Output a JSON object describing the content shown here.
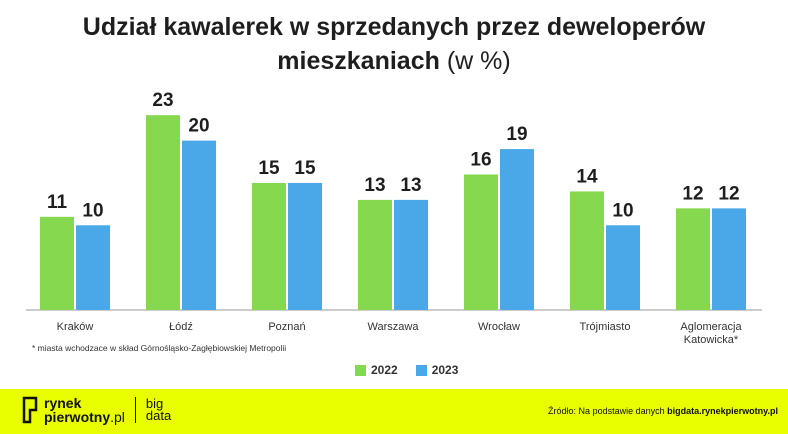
{
  "title": {
    "line1": "Udział kawalerek w sprzedanych przez deweloperów",
    "line2_main": "mieszkaniach",
    "line2_unit": "(w %)"
  },
  "chart_data": {
    "type": "bar",
    "categories": [
      "Kraków",
      "Łódź",
      "Poznań",
      "Warszawa",
      "Wrocław",
      "Trójmiasto",
      "Aglomeracja Katowicka*"
    ],
    "series": [
      {
        "name": "2022",
        "color": "#86d94f",
        "values": [
          11,
          23,
          15,
          13,
          16,
          14,
          12
        ]
      },
      {
        "name": "2023",
        "color": "#4aa8e8",
        "values": [
          10,
          20,
          15,
          13,
          19,
          10,
          12
        ]
      }
    ],
    "ylim": [
      0,
      25
    ],
    "grid": false,
    "legend": "bottom-center"
  },
  "footnote": "* miasta wchodzace w skład Górnośląsko-Zagłębiowskiej Metropolii",
  "footer": {
    "logo_line1": "rynek",
    "logo_line2_bold": "pierwotny",
    "logo_line2_light": ".pl",
    "logo_big_line1": "big",
    "logo_big_line2": "data",
    "source_prefix": "Źródło: Na podstawie danych",
    "source_link": "bigdata.rynekpierwotny.pl"
  }
}
